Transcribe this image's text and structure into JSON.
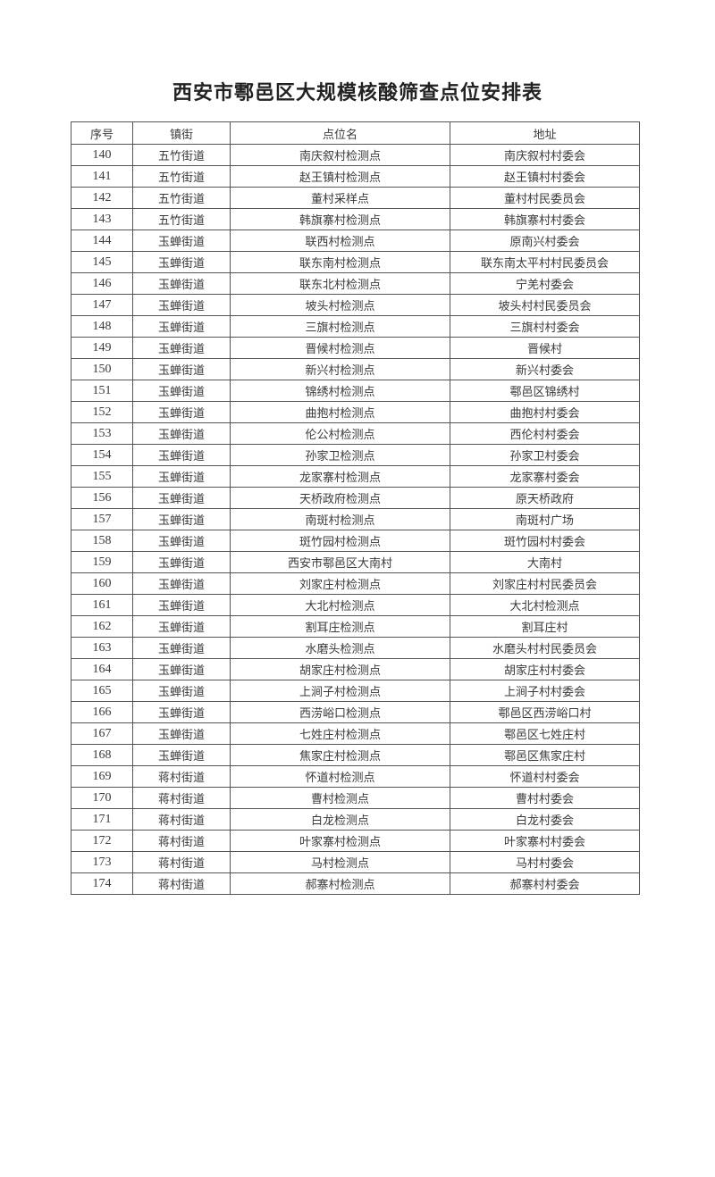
{
  "title": "西安市鄠邑区大规模核酸筛查点位安排表",
  "headers": [
    "序号",
    "镇街",
    "点位名",
    "地址"
  ],
  "rows": [
    [
      "140",
      "五竹街道",
      "南庆叙村检测点",
      "南庆叙村村委会"
    ],
    [
      "141",
      "五竹街道",
      "赵王镇村检测点",
      "赵王镇村村委会"
    ],
    [
      "142",
      "五竹街道",
      "董村采样点",
      "董村村民委员会"
    ],
    [
      "143",
      "五竹街道",
      "韩旗寨村检测点",
      "韩旗寨村村委会"
    ],
    [
      "144",
      "玉蝉街道",
      "联西村检测点",
      "原南兴村委会"
    ],
    [
      "145",
      "玉蝉街道",
      "联东南村检测点",
      "联东南太平村村民委员会"
    ],
    [
      "146",
      "玉蝉街道",
      "联东北村检测点",
      "宁羌村委会"
    ],
    [
      "147",
      "玉蝉街道",
      "坡头村检测点",
      "坡头村村民委员会"
    ],
    [
      "148",
      "玉蝉街道",
      "三旗村检测点",
      "三旗村村委会"
    ],
    [
      "149",
      "玉蝉街道",
      "晋候村检测点",
      "晋候村"
    ],
    [
      "150",
      "玉蝉街道",
      "新兴村检测点",
      "新兴村委会"
    ],
    [
      "151",
      "玉蝉街道",
      "锦绣村检测点",
      "鄠邑区锦绣村"
    ],
    [
      "152",
      "玉蝉街道",
      "曲抱村检测点",
      "曲抱村村委会"
    ],
    [
      "153",
      "玉蝉街道",
      "伦公村检测点",
      "西伦村村委会"
    ],
    [
      "154",
      "玉蝉街道",
      "孙家卫检测点",
      "孙家卫村委会"
    ],
    [
      "155",
      "玉蝉街道",
      "龙家寨村检测点",
      "龙家寨村委会"
    ],
    [
      "156",
      "玉蝉街道",
      "天桥政府检测点",
      "原天桥政府"
    ],
    [
      "157",
      "玉蝉街道",
      "南斑村检测点",
      "南斑村广场"
    ],
    [
      "158",
      "玉蝉街道",
      "斑竹园村检测点",
      "斑竹园村村委会"
    ],
    [
      "159",
      "玉蝉街道",
      "西安市鄠邑区大南村",
      "大南村"
    ],
    [
      "160",
      "玉蝉街道",
      "刘家庄村检测点",
      "刘家庄村村民委员会"
    ],
    [
      "161",
      "玉蝉街道",
      "大北村检测点",
      "大北村检测点"
    ],
    [
      "162",
      "玉蝉街道",
      "割耳庄检测点",
      "割耳庄村"
    ],
    [
      "163",
      "玉蝉街道",
      "水磨头检测点",
      "水磨头村村民委员会"
    ],
    [
      "164",
      "玉蝉街道",
      "胡家庄村检测点",
      "胡家庄村村委会"
    ],
    [
      "165",
      "玉蝉街道",
      "上涧子村检测点",
      "上涧子村村委会"
    ],
    [
      "166",
      "玉蝉街道",
      "西涝峪口检测点",
      "鄠邑区西涝峪口村"
    ],
    [
      "167",
      "玉蝉街道",
      "七姓庄村检测点",
      "鄠邑区七姓庄村"
    ],
    [
      "168",
      "玉蝉街道",
      "焦家庄村检测点",
      "鄠邑区焦家庄村"
    ],
    [
      "169",
      "蒋村街道",
      "怀道村检测点",
      "怀道村村委会"
    ],
    [
      "170",
      "蒋村街道",
      "曹村检测点",
      "曹村村委会"
    ],
    [
      "171",
      "蒋村街道",
      "白龙检测点",
      "白龙村委会"
    ],
    [
      "172",
      "蒋村街道",
      "叶家寨村检测点",
      "叶家寨村村委会"
    ],
    [
      "173",
      "蒋村街道",
      "马村检测点",
      "马村村委会"
    ],
    [
      "174",
      "蒋村街道",
      "郝寨村检测点",
      "郝寨村村委会"
    ]
  ]
}
